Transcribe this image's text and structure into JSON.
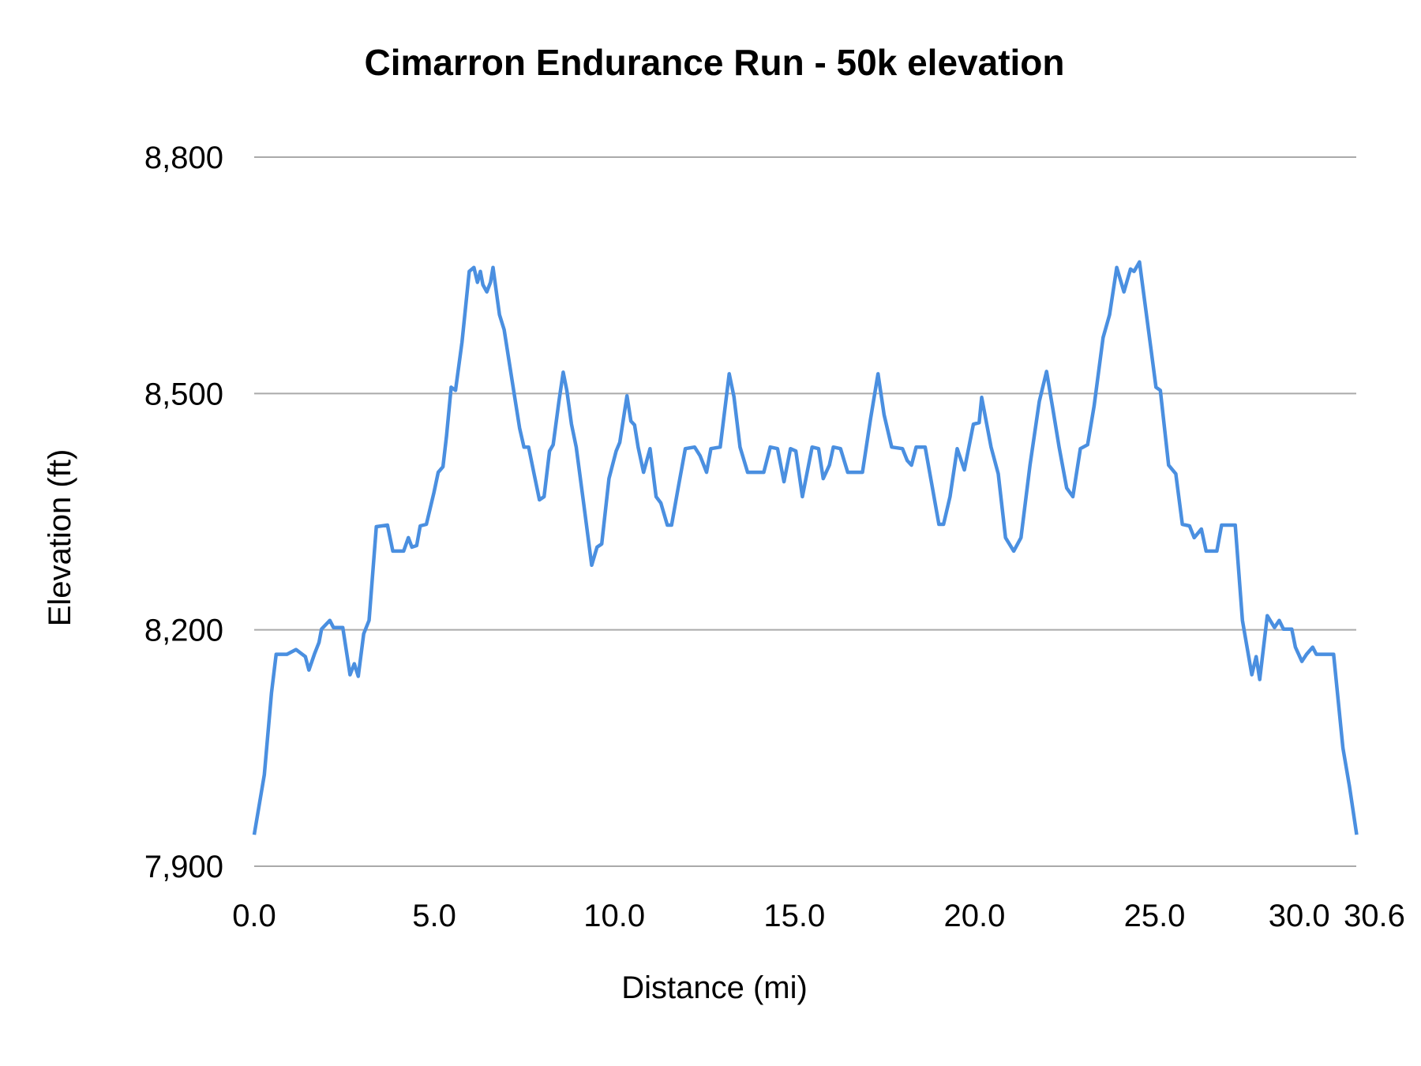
{
  "chart_data": {
    "type": "line",
    "title": "Cimarron Endurance Run - 50k elevation",
    "xlabel": "Distance (mi)",
    "ylabel": "Elevation (ft)",
    "xlim": [
      0,
      30.6
    ],
    "ylim": [
      7900,
      8800
    ],
    "x_ticks": [
      "0.0",
      "5.0",
      "10.0",
      "15.0",
      "20.0",
      "25.0",
      "30.0",
      "30.6"
    ],
    "x_tick_values": [
      0,
      5,
      10,
      15,
      20,
      25,
      30,
      30.6
    ],
    "y_ticks": [
      "7,900",
      "8,200",
      "8,500",
      "8,800"
    ],
    "y_tick_values": [
      7900,
      8200,
      8500,
      8800
    ],
    "grid": "horizontal",
    "legend": "none",
    "color": "#4a8fe0",
    "series": [
      {
        "x": [
          0,
          0.28,
          0.48,
          0.61,
          0.91,
          1.16,
          1.42,
          1.52,
          1.67,
          1.8,
          1.87,
          2.1,
          2.2,
          2.46,
          2.66,
          2.78,
          2.89,
          3.04,
          3.19,
          3.39,
          3.7,
          3.85,
          4.15,
          4.28,
          4.38,
          4.51,
          4.61,
          4.78,
          4.99,
          5.11,
          5.24,
          5.34,
          5.47,
          5.59,
          5.77,
          5.97,
          6.1,
          6.2,
          6.28,
          6.35,
          6.46,
          6.56,
          6.63,
          6.81,
          6.94,
          7.19,
          7.37,
          7.49,
          7.62,
          7.77,
          7.92,
          8.05,
          8.2,
          8.3,
          8.46,
          8.58,
          8.68,
          8.81,
          8.94,
          9.14,
          9.37,
          9.52,
          9.65,
          9.85,
          10.05,
          10.15,
          10.35,
          10.46,
          10.56,
          10.66,
          10.81,
          10.99,
          11.16,
          11.29,
          11.47,
          11.59,
          11.77,
          11.97,
          12.23,
          12.38,
          12.56,
          12.68,
          12.94,
          13.19,
          13.32,
          13.49,
          13.7,
          14.15,
          14.33,
          14.53,
          14.71,
          14.89,
          15.04,
          15.22,
          15.49,
          15.67,
          15.8,
          15.97,
          16.08,
          16.28,
          16.48,
          16.89,
          17.11,
          17.32,
          17.49,
          17.7,
          18.0,
          18.13,
          18.25,
          18.38,
          18.63,
          18.81,
          19.01,
          19.14,
          19.32,
          19.52,
          19.72,
          19.97,
          20.13,
          20.2,
          20.46,
          20.66,
          20.86,
          21.09,
          21.29,
          21.54,
          21.8,
          22.0,
          22.18,
          22.35,
          22.56,
          22.73,
          22.94,
          23.14,
          23.32,
          23.57,
          23.75,
          23.95,
          24.15,
          24.33,
          24.43,
          24.58,
          24.89,
          25.04,
          25.16,
          25.39,
          25.59,
          25.77,
          25.97,
          26.1,
          26.3,
          26.43,
          26.73,
          26.86,
          27.24,
          27.44,
          27.7,
          27.82,
          27.92,
          28.13,
          28.33,
          28.46,
          28.58,
          28.81,
          28.91,
          29.09,
          29.22,
          29.39,
          29.49,
          29.97,
          30.23,
          30.41,
          30.61
        ],
        "y": [
          7940,
          8016,
          8120,
          8169,
          8169,
          8175,
          8166,
          8149,
          8169,
          8184,
          8201,
          8212,
          8203,
          8203,
          8143,
          8157,
          8141,
          8195,
          8212,
          8331,
          8333,
          8300,
          8300,
          8317,
          8305,
          8307,
          8332,
          8334,
          8374,
          8400,
          8407,
          8446,
          8508,
          8504,
          8565,
          8655,
          8660,
          8641,
          8655,
          8638,
          8629,
          8641,
          8660,
          8600,
          8581,
          8508,
          8456,
          8432,
          8432,
          8398,
          8365,
          8369,
          8427,
          8435,
          8490,
          8527,
          8504,
          8461,
          8432,
          8363,
          8282,
          8305,
          8309,
          8392,
          8427,
          8438,
          8497,
          8465,
          8460,
          8432,
          8400,
          8430,
          8369,
          8361,
          8333,
          8333,
          8380,
          8430,
          8432,
          8421,
          8400,
          8430,
          8432,
          8525,
          8496,
          8432,
          8400,
          8400,
          8432,
          8430,
          8388,
          8430,
          8427,
          8369,
          8432,
          8430,
          8392,
          8409,
          8432,
          8430,
          8400,
          8400,
          8467,
          8525,
          8473,
          8432,
          8430,
          8415,
          8409,
          8432,
          8432,
          8386,
          8334,
          8334,
          8369,
          8430,
          8403,
          8461,
          8463,
          8495,
          8432,
          8398,
          8317,
          8300,
          8317,
          8409,
          8490,
          8528,
          8479,
          8432,
          8380,
          8369,
          8430,
          8435,
          8484,
          8571,
          8600,
          8660,
          8629,
          8658,
          8655,
          8667,
          8560,
          8508,
          8504,
          8409,
          8398,
          8334,
          8332,
          8317,
          8328,
          8300,
          8300,
          8333,
          8333,
          8212,
          8143,
          8166,
          8137,
          8218,
          8203,
          8212,
          8201,
          8201,
          8178,
          8160,
          8169,
          8178,
          8169,
          8169,
          8050,
          8002,
          7940
        ]
      }
    ]
  }
}
